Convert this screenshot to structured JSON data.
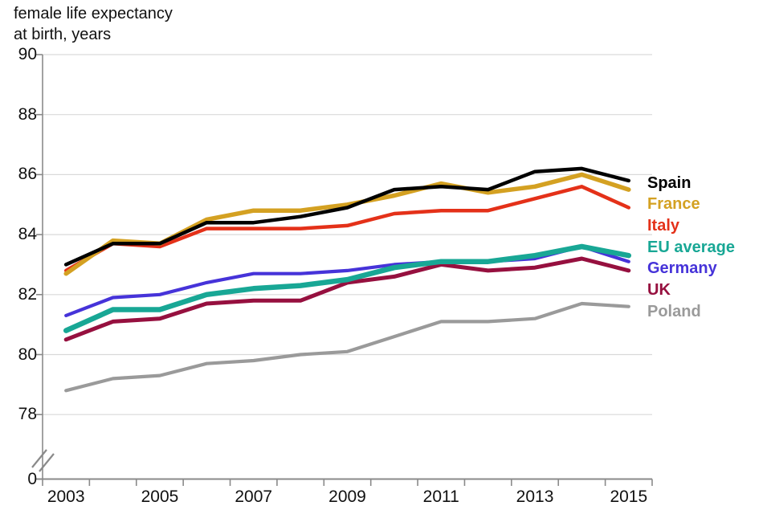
{
  "title": {
    "line1": "female life expectancy",
    "line2": "at birth, years"
  },
  "chart_data": {
    "type": "line",
    "x": [
      2003,
      2004,
      2005,
      2006,
      2007,
      2008,
      2009,
      2010,
      2011,
      2012,
      2013,
      2014,
      2015
    ],
    "x_tick_labels": [
      "2003",
      "2005",
      "2007",
      "2009",
      "2011",
      "2013",
      "2015"
    ],
    "y_ticks": [
      {
        "label": "90",
        "value": 90
      },
      {
        "label": "88",
        "value": 88
      },
      {
        "label": "86",
        "value": 86
      },
      {
        "label": "84",
        "value": 84
      },
      {
        "label": "82",
        "value": 82
      },
      {
        "label": "80",
        "value": 80
      },
      {
        "label": "78",
        "value": 78
      }
    ],
    "y_axis_zero_label": "0",
    "y_axis_break": true,
    "ylim_display": [
      78,
      90
    ],
    "grid": "horizontal",
    "legend_position": "right",
    "series": [
      {
        "name": "Spain",
        "color": "#000000",
        "stroke_width": 4.5,
        "values": [
          83.0,
          83.7,
          83.7,
          84.4,
          84.4,
          84.6,
          84.9,
          85.5,
          85.6,
          85.5,
          86.1,
          86.2,
          85.8
        ]
      },
      {
        "name": "France",
        "color": "#d4a122",
        "stroke_width": 5.5,
        "values": [
          82.7,
          83.8,
          83.7,
          84.5,
          84.8,
          84.8,
          85.0,
          85.3,
          85.7,
          85.4,
          85.6,
          86.0,
          85.5
        ]
      },
      {
        "name": "Italy",
        "color": "#e43119",
        "stroke_width": 4.5,
        "values": [
          82.8,
          83.7,
          83.6,
          84.2,
          84.2,
          84.2,
          84.3,
          84.7,
          84.8,
          84.8,
          85.2,
          85.6,
          84.9
        ]
      },
      {
        "name": "EU average",
        "color": "#18a795",
        "stroke_width": 6.5,
        "values": [
          80.8,
          81.5,
          81.5,
          82.0,
          82.2,
          82.3,
          82.5,
          82.9,
          83.1,
          83.1,
          83.3,
          83.6,
          83.3
        ]
      },
      {
        "name": "Germany",
        "color": "#4633d9",
        "stroke_width": 4.2,
        "values": [
          81.3,
          81.9,
          82.0,
          82.4,
          82.7,
          82.7,
          82.8,
          83.0,
          83.1,
          83.1,
          83.2,
          83.6,
          83.1
        ]
      },
      {
        "name": "UK",
        "color": "#96103f",
        "stroke_width": 5.0,
        "values": [
          80.5,
          81.1,
          81.2,
          81.7,
          81.8,
          81.8,
          82.4,
          82.6,
          83.0,
          82.8,
          82.9,
          83.2,
          82.8
        ]
      },
      {
        "name": "Poland",
        "color": "#9a9a9a",
        "stroke_width": 4.2,
        "values": [
          78.8,
          79.2,
          79.3,
          79.7,
          79.8,
          80.0,
          80.1,
          80.6,
          81.1,
          81.1,
          81.2,
          81.7,
          81.6
        ]
      }
    ]
  },
  "colors": {
    "gridline": "#d9d9d9",
    "axis": "#8a8a8a",
    "text": "#111111"
  }
}
